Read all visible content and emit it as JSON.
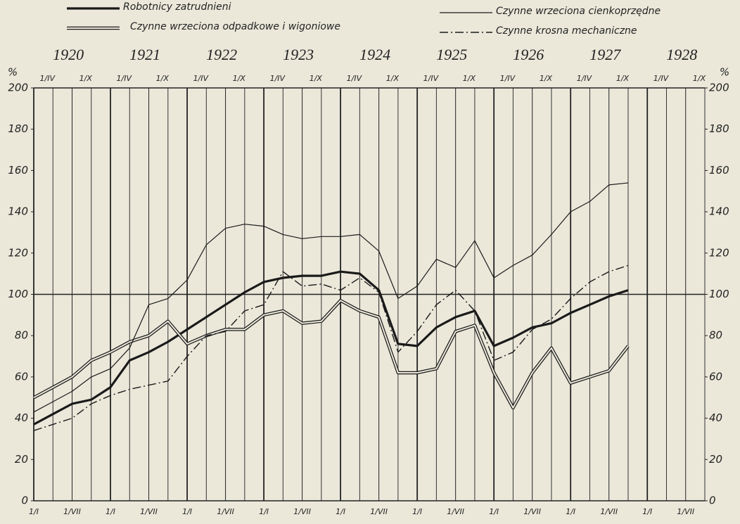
{
  "chart_data": {
    "type": "line",
    "ylabel": "%",
    "x": [
      1920,
      1920.25,
      1920.5,
      1920.75,
      1921,
      1921.25,
      1921.5,
      1921.75,
      1922,
      1922.25,
      1922.5,
      1922.75,
      1923,
      1923.25,
      1923.5,
      1923.75,
      1924,
      1924.25,
      1924.5,
      1924.75,
      1925,
      1925.25,
      1925.5,
      1925.75,
      1926,
      1926.25,
      1926.5,
      1926.75,
      1927,
      1927.25,
      1927.5,
      1927.75
    ],
    "series": [
      {
        "name": "Robotnicy zatrudnieni",
        "color": "#1a1a1a",
        "line_style": "bold",
        "values": [
          37,
          42,
          47,
          49,
          55,
          68,
          72,
          77,
          83,
          89,
          95,
          101,
          106,
          108,
          109,
          109,
          111,
          110,
          102,
          76,
          75,
          84,
          89,
          92,
          75,
          79,
          84,
          86,
          91,
          95,
          99,
          102
        ]
      },
      {
        "name": "Czynne wrzeciona odpadkowe i wigoniowe",
        "color": "#1a1a1a",
        "line_style": "double",
        "values": [
          50,
          55,
          60,
          68,
          72,
          77,
          80,
          87,
          76,
          80,
          83,
          83,
          90,
          92,
          86,
          87,
          97,
          92,
          89,
          62,
          62,
          64,
          82,
          85,
          62,
          45,
          62,
          74,
          57,
          60,
          63,
          75
        ]
      },
      {
        "name": "Czynne wrzeciona cienkoprzędne",
        "color": "#1a1a1a",
        "line_style": "thin",
        "values": [
          43,
          48,
          53,
          60,
          64,
          74,
          95,
          98,
          107,
          124,
          132,
          134,
          133,
          129,
          127,
          128,
          128,
          129,
          121,
          98,
          104,
          117,
          113,
          126,
          108,
          114,
          119,
          129,
          140,
          145,
          153,
          154
        ]
      },
      {
        "name": "Czynne krosna mechaniczne",
        "color": "#1a1a1a",
        "line_style": "dash-dot",
        "values": [
          34,
          37,
          40,
          47,
          51,
          54,
          56,
          58,
          70,
          80,
          82,
          92,
          95,
          111,
          104,
          105,
          102,
          108,
          101,
          72,
          82,
          95,
          102,
          92,
          68,
          72,
          83,
          88,
          98,
          106,
          111,
          114
        ]
      }
    ],
    "xlim": [
      1920,
      1928.75
    ],
    "ylim": [
      0,
      200
    ],
    "yticks": [
      0,
      20,
      40,
      60,
      80,
      100,
      120,
      140,
      160,
      180,
      200
    ],
    "ygrid": [
      0,
      100,
      200
    ],
    "year_ticks": [
      1920,
      1921,
      1922,
      1923,
      1924,
      1925,
      1926,
      1927,
      1928
    ],
    "xticks_top": [
      {
        "value": 1920.25,
        "label": "1/IV"
      },
      {
        "value": 1920.75,
        "label": "1/X"
      },
      {
        "value": 1921.25,
        "label": "1/IV"
      },
      {
        "value": 1921.75,
        "label": "1/X"
      },
      {
        "value": 1922.25,
        "label": "1/IV"
      },
      {
        "value": 1922.75,
        "label": "1/X"
      },
      {
        "value": 1923.25,
        "label": "1/IV"
      },
      {
        "value": 1923.75,
        "label": "1/X"
      },
      {
        "value": 1924.25,
        "label": "1/IV"
      },
      {
        "value": 1924.75,
        "label": "1/X"
      },
      {
        "value": 1925.25,
        "label": "1/IV"
      },
      {
        "value": 1925.75,
        "label": "1/X"
      },
      {
        "value": 1926.25,
        "label": "1/IV"
      },
      {
        "value": 1926.75,
        "label": "1/X"
      },
      {
        "value": 1927.25,
        "label": "1/IV"
      },
      {
        "value": 1927.75,
        "label": "1/X"
      },
      {
        "value": 1928.25,
        "label": "1/IV"
      },
      {
        "value": 1928.75,
        "label": "1/X"
      }
    ],
    "xticks_bottom": [
      {
        "value": 1920,
        "label": "1/I"
      },
      {
        "value": 1920.5,
        "label": "1/VII"
      },
      {
        "value": 1921,
        "label": "1/I"
      },
      {
        "value": 1921.5,
        "label": "1/VII"
      },
      {
        "value": 1922,
        "label": "1/I"
      },
      {
        "value": 1922.5,
        "label": "1/VII"
      },
      {
        "value": 1923,
        "label": "1/I"
      },
      {
        "value": 1923.5,
        "label": "1/VII"
      },
      {
        "value": 1924,
        "label": "1/I"
      },
      {
        "value": 1924.5,
        "label": "1/VII"
      },
      {
        "value": 1925,
        "label": "1/I"
      },
      {
        "value": 1925.5,
        "label": "1/VII"
      },
      {
        "value": 1926,
        "label": "1/I"
      },
      {
        "value": 1926.5,
        "label": "1/VII"
      },
      {
        "value": 1927,
        "label": "1/I"
      },
      {
        "value": 1927.5,
        "label": "1/VII"
      },
      {
        "value": 1928,
        "label": "1/I"
      },
      {
        "value": 1928.5,
        "label": "1/VII"
      }
    ]
  }
}
